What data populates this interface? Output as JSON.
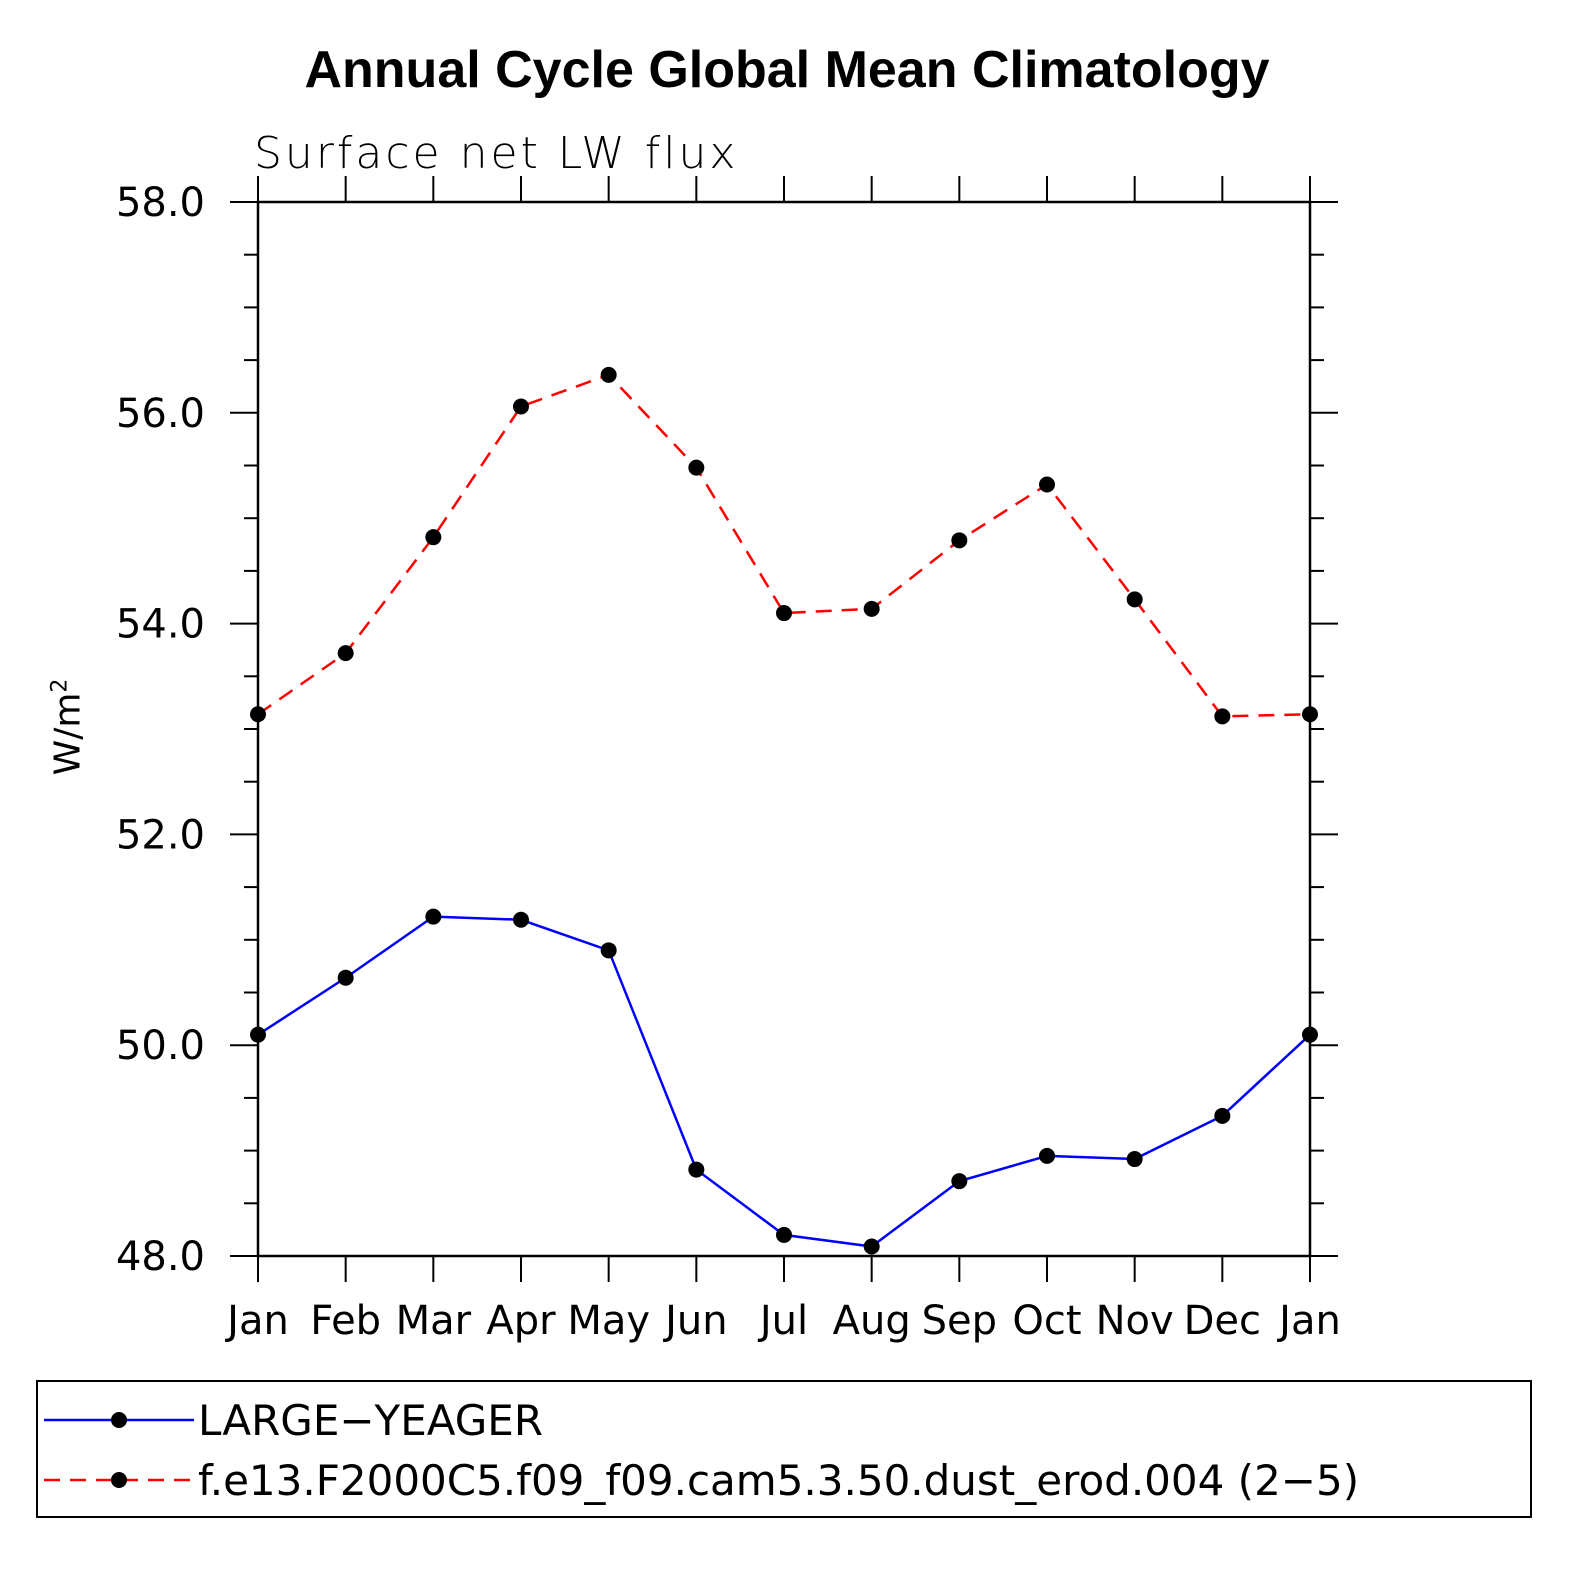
{
  "chart_data": {
    "type": "line",
    "title": "Annual Cycle Global Mean Climatology",
    "subtitle": "Surface net LW flux",
    "ylabel": "W/m",
    "ylabel_superscript": "2",
    "xlabel": "",
    "categories": [
      "Jan",
      "Feb",
      "Mar",
      "Apr",
      "May",
      "Jun",
      "Jul",
      "Aug",
      "Sep",
      "Oct",
      "Nov",
      "Dec",
      "Jan"
    ],
    "ylim": [
      48.0,
      58.0
    ],
    "yticks": [
      "48.0",
      "50.0",
      "52.0",
      "54.0",
      "56.0",
      "58.0"
    ],
    "grid": false,
    "legend_position": "bottom",
    "series": [
      {
        "name": "LARGE−YEAGER",
        "color": "#0000ff",
        "style": "solid",
        "values": [
          50.1,
          50.64,
          51.22,
          51.19,
          50.9,
          48.82,
          48.2,
          48.09,
          48.71,
          48.95,
          48.92,
          49.33,
          50.1
        ]
      },
      {
        "name": "f.e13.F2000C5.f09_f09.cam5.3.50.dust_erod.004 (2−5)",
        "color": "#ff0000",
        "style": "dashed",
        "values": [
          53.14,
          53.72,
          54.82,
          56.06,
          56.36,
          55.48,
          54.1,
          54.14,
          54.79,
          55.32,
          54.23,
          53.12,
          53.14
        ]
      }
    ]
  }
}
